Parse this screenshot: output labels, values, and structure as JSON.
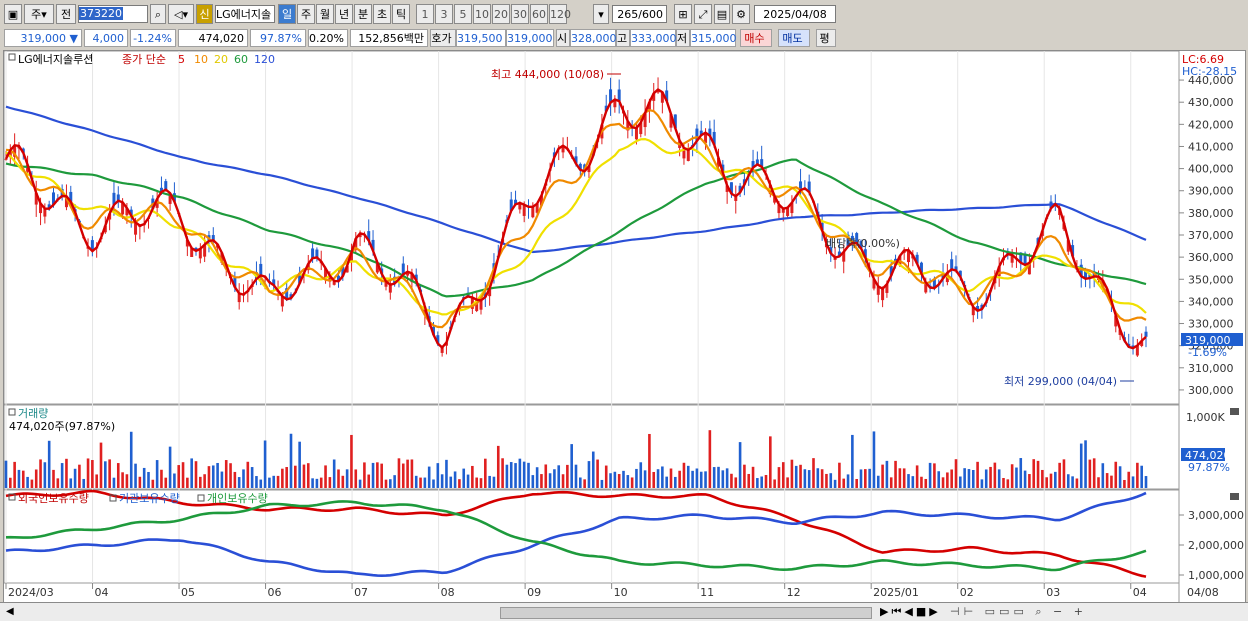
{
  "toolbar": {
    "period_label": "주",
    "prev_label": "전",
    "code": "373220",
    "badge_new": "신",
    "stock_name": "LG에너지솔",
    "periods": [
      "일",
      "주",
      "월",
      "년",
      "분",
      "초",
      "틱"
    ],
    "active_period": "일",
    "intervals": [
      "1",
      "3",
      "5",
      "10",
      "20",
      "30",
      "60",
      "120"
    ],
    "count": "265/600",
    "date": "2025/04/08"
  },
  "quote": {
    "price": "319,000 ▼",
    "change": "4,000",
    "change_pct": "-1.24%",
    "volume": "474,020",
    "vol_ratio": "97.87%",
    "turnover": "0.20%",
    "amount": "152,856백만",
    "bid_label": "호가",
    "bid": "319,500",
    "ask": "319,000",
    "open_label": "시",
    "open": "328,000",
    "high_label": "고",
    "high": "333,000",
    "low_label": "저",
    "low": "315,000",
    "buy_label": "매수",
    "sell_label": "매도",
    "avg_label": "평"
  },
  "price_panel": {
    "title": "LG에너지솔루션",
    "ma_label": "종가 단순",
    "ma_periods": [
      "5",
      "10",
      "20",
      "60",
      "120"
    ],
    "lc": "LC:6.69",
    "hc": "HC:-28.15",
    "high_annotation": "최고 444,000 (10/08)",
    "low_annotation": "최저 299,000 (04/04)",
    "dividend_annotation": "배당락(0.00%)",
    "current_price": "319,000",
    "current_pct": "-1.69%",
    "y_ticks": [
      "440,000",
      "430,000",
      "420,000",
      "410,000",
      "400,000",
      "390,000",
      "380,000",
      "370,000",
      "360,000",
      "350,000",
      "340,000",
      "330,000",
      "320,000",
      "310,000",
      "300,000"
    ]
  },
  "volume_panel": {
    "title": "거래량",
    "subtitle": "474,020주(97.87%)",
    "y_tick": "1,000K",
    "current": "474,020",
    "current_pct": "97.87%"
  },
  "holder_panel": {
    "series": [
      "외국인보유수량",
      "기관보유수량",
      "개인보유수량"
    ],
    "y_ticks": [
      "3,000,000",
      "2,000,000",
      "1,000,000"
    ]
  },
  "x_labels": [
    "2024/03",
    "04",
    "05",
    "06",
    "07",
    "08",
    "09",
    "10",
    "11",
    "12",
    "2025/01",
    "02",
    "03",
    "04"
  ],
  "x_label_end": "04/08",
  "colors": {
    "up": "#e02020",
    "down": "#1f5fd0",
    "ma5": "#d40000",
    "ma10": "#f08a00",
    "ma20": "#f0e000",
    "ma60": "#1e9a3c",
    "ma120": "#2a4fd6"
  },
  "chart_data": {
    "type": "line",
    "x": [
      "2024-03",
      "2024-04",
      "2024-05",
      "2024-06",
      "2024-07",
      "2024-08",
      "2024-09",
      "2024-10",
      "2024-11",
      "2024-12",
      "2025-01",
      "2025-02",
      "2025-03",
      "2025-04"
    ],
    "series": [
      {
        "name": "5",
        "values": [
          400000,
          375000,
          380000,
          338000,
          368000,
          325000,
          385000,
          430000,
          410000,
          382000,
          355000,
          345000,
          372000,
          320000
        ]
      },
      {
        "name": "10",
        "values": [
          402000,
          378000,
          378000,
          342000,
          362000,
          328000,
          375000,
          425000,
          408000,
          385000,
          355000,
          344000,
          365000,
          328000
        ]
      },
      {
        "name": "20",
        "values": [
          404000,
          382000,
          375000,
          345000,
          358000,
          332000,
          362000,
          412000,
          405000,
          387000,
          357000,
          347000,
          360000,
          334000
        ]
      },
      {
        "name": "60",
        "values": [
          402000,
          397000,
          387000,
          372000,
          362000,
          342000,
          349000,
          372000,
          394000,
          404000,
          384000,
          367000,
          357000,
          348000
        ]
      },
      {
        "name": "120",
        "values": [
          428000,
          417000,
          405000,
          397000,
          387000,
          375000,
          362000,
          367000,
          372000,
          378000,
          380000,
          382000,
          384000,
          368000
        ]
      }
    ],
    "ylim": [
      295000,
      445000
    ],
    "high": 444000,
    "low": 299000,
    "last": 319000
  }
}
